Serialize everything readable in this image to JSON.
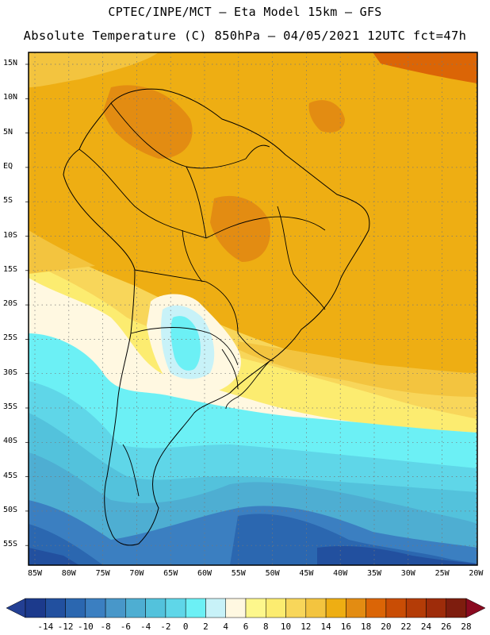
{
  "header": {
    "line1": "CPTEC/INPE/MCT –  Eta Model 15km – GFS",
    "line2": "Absolute Temperature (C) 850hPa – 04/05/2021 12UTC fct=47h"
  },
  "axes": {
    "lat_labels": [
      "15N",
      "10N",
      "5N",
      "EQ",
      "5S",
      "10S",
      "15S",
      "20S",
      "25S",
      "30S",
      "35S",
      "40S",
      "45S",
      "50S",
      "55S"
    ],
    "lon_labels": [
      "85W",
      "80W",
      "75W",
      "70W",
      "65W",
      "60W",
      "55W",
      "50W",
      "45W",
      "40W",
      "35W",
      "30W",
      "25W",
      "20W"
    ]
  },
  "colorbar": {
    "labels": [
      "-14",
      "-12",
      "-10",
      "-8",
      "-6",
      "-4",
      "-2",
      "0",
      "2",
      "4",
      "6",
      "8",
      "10",
      "12",
      "14",
      "16",
      "18",
      "20",
      "22",
      "24",
      "26",
      "28"
    ],
    "colors": [
      "#1c3a8c",
      "#22509f",
      "#2b67b0",
      "#3b7fc1",
      "#4897c9",
      "#4eaed2",
      "#53c2dc",
      "#5fd6e8",
      "#6cf0f5",
      "#c8f2f8",
      "#fff8e1",
      "#fdf78c",
      "#fcec70",
      "#f8d65a",
      "#f3c43f",
      "#eeae13",
      "#e38c12",
      "#db6506",
      "#c94d05",
      "#b43c07",
      "#9e2c0a",
      "#7e1d0e"
    ],
    "under_color": "#233f93",
    "over_color": "#8a0a20"
  },
  "map_colors": {
    "t20": "#e38c12",
    "t18": "#eeae13",
    "t16": "#f3c43f",
    "t14": "#f8d65a",
    "t12": "#fcec70",
    "t10": "#fdf78c",
    "t8": "#fff8e1",
    "t6": "#c8f2f8",
    "t4": "#6cf0f5",
    "t2": "#5fd6e8",
    "t0": "#53c2dc",
    "tm2": "#4eaed2",
    "tm4": "#3b7fc1",
    "tm6": "#2b67b0",
    "tm8": "#22509f",
    "tm10": "#1c3a8c",
    "t22": "#db6506"
  }
}
